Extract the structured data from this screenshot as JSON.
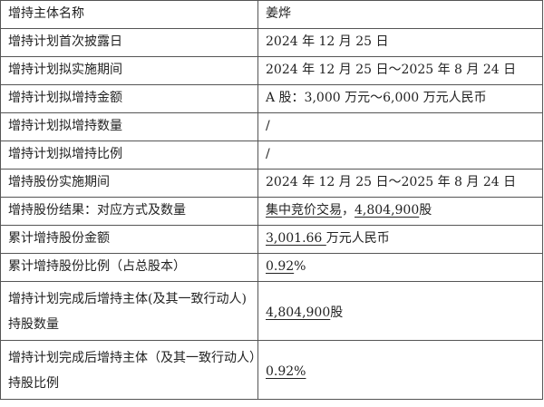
{
  "rows": [
    {
      "label": "增持主体名称",
      "value": "姜烨"
    },
    {
      "label": "增持计划首次披露日",
      "value": "2024 年 12 月 25 日"
    },
    {
      "label": "增持计划拟实施期间",
      "value": "2024 年 12 月 25 日～2025 年 8 月 24 日"
    },
    {
      "label": "增持计划拟增持金额",
      "value": "A 股：3,000 万元～6,000 万元人民币"
    },
    {
      "label": "增持计划拟增持数量",
      "value": "/"
    },
    {
      "label": "增持计划拟增持比例",
      "value": "/"
    },
    {
      "label": "增持股份实施期间",
      "value": "2024 年 12 月 25 日～2025 年 8 月 24 日"
    },
    {
      "label": "增持股份结果：对应方式及数量",
      "value_a": "集中竞价交易",
      "value_b": "，",
      "value_c": "4,804,900",
      "value_d": "股"
    },
    {
      "label": "累计增持股份金额",
      "value_a": "3,001.66 ",
      "value_b": "万元人民币"
    },
    {
      "label": "累计增持股份比例（占总股本）",
      "value_a": "0.92",
      "value_b": "%"
    },
    {
      "label": "增持计划完成后增持主体(及其一致行动人)持股数量",
      "value_a": "4,804,900",
      "value_b": "股"
    },
    {
      "label": "增持计划完成后增持主体（及其一致行动人）持股比例",
      "value": "0.92%"
    }
  ]
}
